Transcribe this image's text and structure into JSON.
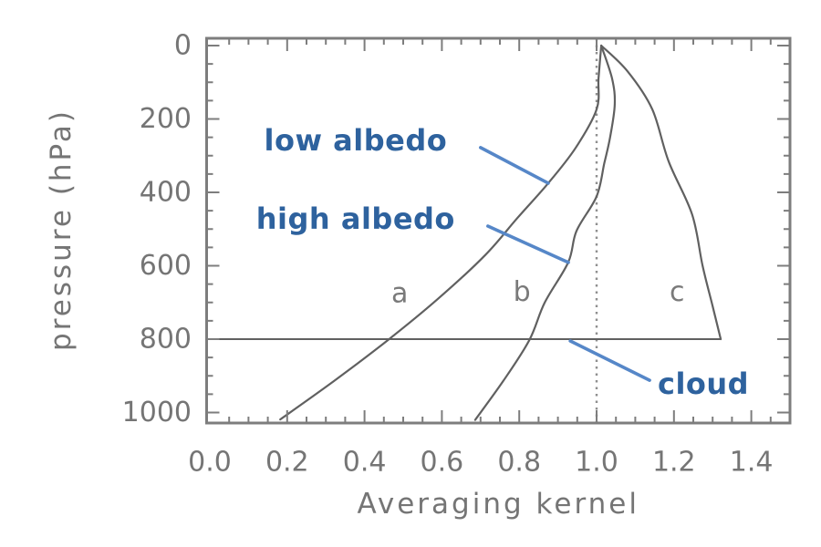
{
  "figure": {
    "background": "#ffffff",
    "description": "Averaging kernel profiles versus pressure for low albedo, high albedo and cloud scenes"
  },
  "chart_data": {
    "type": "line",
    "title": "",
    "xlabel": "Averaging kernel",
    "ylabel": "pressure (hPa)",
    "xlim": [
      0.0,
      1.5
    ],
    "ylim_pressure_top_to_bottom": [
      0,
      1000
    ],
    "y_axis_inverted": true,
    "grid": false,
    "legend": "none (inline annotations with pointer lines)",
    "x_ticks": [
      0.0,
      0.2,
      0.4,
      0.6,
      0.8,
      1.0,
      1.2,
      1.4
    ],
    "x_tick_labels": [
      "0.0",
      "0.2",
      "0.4",
      "0.6",
      "0.8",
      "1.0",
      "1.2",
      "1.4"
    ],
    "x_minor_tick_step": 0.05,
    "y_ticks": [
      0,
      200,
      400,
      600,
      800,
      1000
    ],
    "y_tick_labels": [
      "0",
      "200",
      "400",
      "600",
      "800",
      "1000"
    ],
    "y_minor_tick_step": 50,
    "series": [
      {
        "name": "low albedo",
        "letter": "a",
        "points": [
          [
            1.012,
            0
          ],
          [
            1.005,
            90
          ],
          [
            1.0,
            174
          ],
          [
            0.945,
            280
          ],
          [
            0.875,
            375
          ],
          [
            0.795,
            470
          ],
          [
            0.712,
            571
          ],
          [
            0.59,
            690
          ],
          [
            0.46,
            803
          ],
          [
            0.32,
            915
          ],
          [
            0.182,
            1019
          ]
        ]
      },
      {
        "name": "high albedo",
        "letter": "b",
        "points": [
          [
            1.012,
            0
          ],
          [
            1.04,
            90
          ],
          [
            1.047,
            160
          ],
          [
            1.035,
            250
          ],
          [
            1.02,
            320
          ],
          [
            1.0,
            411
          ],
          [
            0.948,
            505
          ],
          [
            0.927,
            590
          ],
          [
            0.866,
            700
          ],
          [
            0.826,
            803
          ],
          [
            0.758,
            915
          ],
          [
            0.686,
            1020
          ]
        ]
      },
      {
        "name": "cloud",
        "letter": "c",
        "points": [
          [
            1.012,
            0
          ],
          [
            1.08,
            70
          ],
          [
            1.144,
            174
          ],
          [
            1.186,
            315
          ],
          [
            1.247,
            460
          ],
          [
            1.274,
            600
          ],
          [
            1.3,
            710
          ],
          [
            1.321,
            800
          ]
        ]
      }
    ],
    "reference_lines": {
      "vertical_dotted": {
        "x": 1.0,
        "pressure_from": -20,
        "pressure_to": 1029
      },
      "cloud_top_horizontal": {
        "pressure": 800,
        "x_from": 0.0,
        "x_to": 1.321
      }
    },
    "curve_letters": [
      {
        "text": "a",
        "x": 0.491,
        "pressure": 676
      },
      {
        "text": "b",
        "x": 0.807,
        "pressure": 672
      },
      {
        "text": "c",
        "x": 1.208,
        "pressure": 672
      }
    ],
    "annotations": [
      {
        "text": "low albedo",
        "x": 0.377,
        "pressure": 258,
        "pointer_from": [
          0.7,
          278
        ],
        "pointer_to": [
          0.875,
          375
        ]
      },
      {
        "text": "high albedo",
        "x": 0.377,
        "pressure": 472,
        "pointer_from": [
          0.719,
          492
        ],
        "pointer_to": [
          0.927,
          591
        ]
      },
      {
        "text": "cloud",
        "x": 1.276,
        "pressure": 922,
        "pointer_from": [
          0.932,
          805
        ],
        "pointer_to": [
          1.137,
          912
        ]
      }
    ],
    "colors": {
      "background": "#ffffff",
      "curve": "#606060",
      "frame": "#7d7d7d",
      "tick": "#7d7d7d",
      "axis_text": "#757575",
      "dotted_guide": "#8f8f8f",
      "annotation_text": "#2e629e",
      "annotation_pointer": "#5687c8"
    }
  }
}
